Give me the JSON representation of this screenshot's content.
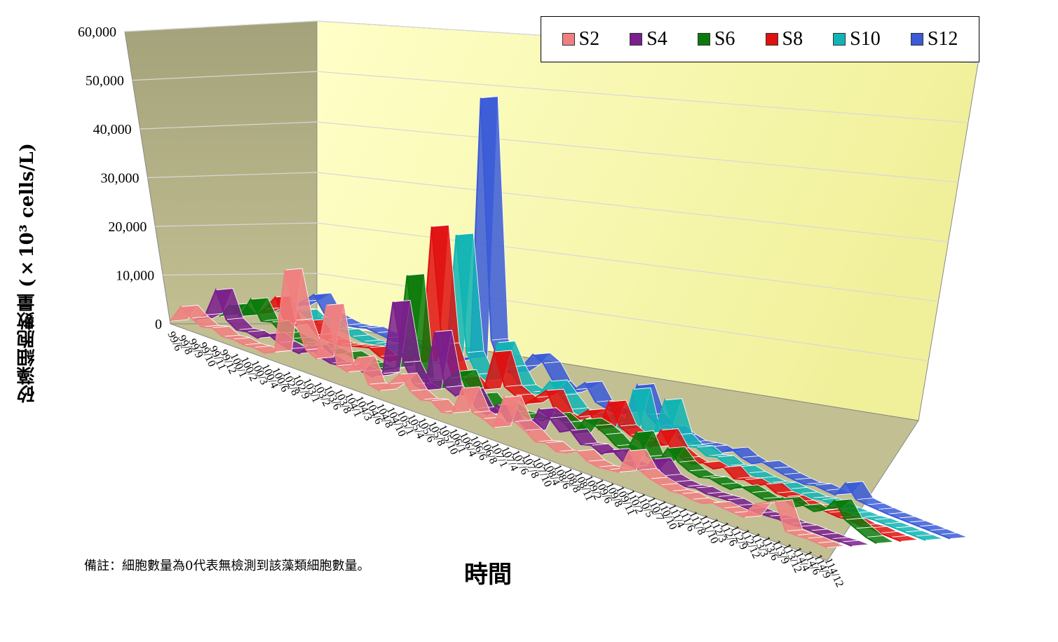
{
  "chart_data": {
    "type": "area",
    "ylabel": "矽藻細胞數量 (×10³ cells/L)",
    "xlabel": "時間",
    "ylim": [
      0,
      60000
    ],
    "yticks": [
      "0",
      "10,000",
      "20,000",
      "30,000",
      "40,000",
      "50,000",
      "60,000"
    ],
    "legend_position": "top-right",
    "note": "備註：細胞數量為0代表無檢測到該藻類細胞數量。",
    "categories": [
      "99/6",
      "99/8",
      "99/9",
      "99/10",
      "99/11",
      "99/12",
      "100/1",
      "100/2",
      "100/3",
      "100/4",
      "100/6",
      "102/8",
      "102/9",
      "103/1",
      "103/2",
      "103/6",
      "103/8",
      "104/1",
      "104/3",
      "104/6",
      "104/8",
      "104/10",
      "105/1",
      "105/4",
      "105/6",
      "105/8",
      "105/10",
      "106/1",
      "106/4",
      "106/6",
      "106/8",
      "107/1",
      "107/4",
      "107/6",
      "107/8",
      "107/10",
      "108/4",
      "108/6",
      "108/8",
      "108/11",
      "109/2",
      "109/6",
      "109/8",
      "109/11",
      "110/2",
      "110/5",
      "110/7",
      "110/10",
      "111/4",
      "111/6",
      "111/8",
      "111/10",
      "112/3",
      "112/6",
      "112/9",
      "112/12",
      "113/3",
      "113/6",
      "113/9",
      "113/12",
      "114/4",
      "114/6",
      "114/9",
      "114/12"
    ],
    "series": [
      {
        "name": "S2",
        "color": "#f08080",
        "values": [
          500,
          4000,
          2500,
          1500,
          2000,
          1000,
          1200,
          800,
          1000,
          600,
          1500,
          18000,
          9000,
          4000,
          3000,
          14000,
          3000,
          2500,
          6000,
          1500,
          1000,
          3000,
          5500,
          3000,
          2000,
          2500,
          1000,
          1500,
          7000,
          3000,
          2500,
          1500,
          8000,
          4000,
          3000,
          1500,
          2000,
          1000,
          1500,
          2500,
          1200,
          800,
          1000,
          1200,
          6000,
          3000,
          2000,
          1500,
          1000,
          1200,
          800,
          700,
          1500,
          1200,
          1000,
          800,
          4000,
          5000,
          6000,
          900,
          800,
          900,
          700,
          500
        ]
      },
      {
        "name": "S4",
        "color": "#7a1f8c",
        "values": [
          300,
          2000,
          7500,
          2500,
          1200,
          1500,
          1000,
          2500,
          1500,
          1000,
          800,
          3000,
          1500,
          1000,
          1200,
          2000,
          1500,
          1200,
          2500,
          17000,
          6000,
          2500,
          2000,
          14000,
          4000,
          3000,
          5000,
          2000,
          1500,
          4000,
          1500,
          2500,
          1000,
          6000,
          5000,
          3000,
          4000,
          2000,
          2500,
          1500,
          3000,
          1500,
          1200,
          1000,
          4000,
          1500,
          1000,
          800,
          1200,
          800,
          900,
          1000,
          600,
          700,
          500,
          600,
          700,
          500,
          700,
          600,
          500,
          400,
          500,
          400
        ]
      },
      {
        "name": "S6",
        "color": "#0b7a0b",
        "values": [
          600,
          3500,
          2000,
          6000,
          2500,
          3000,
          1500,
          1200,
          1000,
          1500,
          1200,
          1000,
          2000,
          1500,
          1200,
          1000,
          1500,
          2500,
          21000,
          1500,
          2000,
          1200,
          4000,
          6000,
          1500,
          3000,
          1200,
          2500,
          1500,
          1800,
          1500,
          2000,
          4000,
          3000,
          1500,
          5000,
          4500,
          3500,
          2000,
          1500,
          6000,
          2000,
          1500,
          5000,
          3000,
          2000,
          1500,
          2000,
          1500,
          1200,
          2500,
          2000,
          1500,
          1500,
          3000,
          2000,
          3000,
          2500,
          3500,
          6000,
          3000,
          2000,
          1000,
          500
        ]
      },
      {
        "name": "S8",
        "color": "#e01010",
        "values": [
          800,
          1200,
          3000,
          6000,
          1500,
          2000,
          3500,
          1500,
          1200,
          1000,
          1500,
          2000,
          2500,
          1500,
          1200,
          3000,
          2500,
          3000,
          30000,
          8000,
          2500,
          3000,
          1200,
          2000,
          10000,
          4000,
          3000,
          2000,
          4000,
          6000,
          2000,
          1500,
          3000,
          5000,
          2000,
          8000,
          4000,
          3000,
          2500,
          2000,
          6000,
          3000,
          2000,
          1500,
          2500,
          2000,
          3000,
          1500,
          2000,
          1500,
          2500,
          1500,
          1500,
          1200,
          1000,
          1500,
          1200,
          1000,
          1200,
          800,
          1000,
          700,
          600,
          500
        ]
      },
      {
        "name": "S10",
        "color": "#10b4b4",
        "values": [
          1000,
          1500,
          2500,
          3000,
          1800,
          3000,
          1500,
          2000,
          1500,
          1200,
          1500,
          2000,
          1500,
          1200,
          1000,
          1500,
          2000,
          2500,
          28000,
          6000,
          2500,
          2000,
          10000,
          6000,
          3000,
          2500,
          3000,
          6000,
          4000,
          2000,
          1500,
          2500,
          3000,
          2000,
          1500,
          10000,
          2000,
          3000,
          10000,
          4000,
          2500,
          3000,
          2000,
          2500,
          1500,
          2000,
          1500,
          1200,
          1000,
          1500,
          1200,
          1000,
          800,
          1200,
          1000,
          800,
          700,
          600,
          800,
          700,
          600,
          500,
          400,
          300
        ]
      },
      {
        "name": "S12",
        "color": "#3a5ad8",
        "values": [
          1200,
          3000,
          5000,
          2000,
          1500,
          1200,
          1500,
          2000,
          1800,
          1500,
          1200,
          1500,
          2000,
          1500,
          1200,
          1000,
          2500,
          3000,
          54000,
          8000,
          3000,
          3000,
          5000,
          8000,
          7000,
          4000,
          2500,
          4000,
          6000,
          3000,
          2500,
          2000,
          3000,
          9000,
          4000,
          2500,
          3000,
          2000,
          1500,
          1800,
          2000,
          1500,
          3000,
          2000,
          1500,
          2500,
          2000,
          1500,
          1200,
          1000,
          1500,
          1200,
          1000,
          4000,
          1500,
          1200,
          1000,
          800,
          700,
          600,
          500,
          400,
          300,
          200
        ]
      }
    ]
  }
}
